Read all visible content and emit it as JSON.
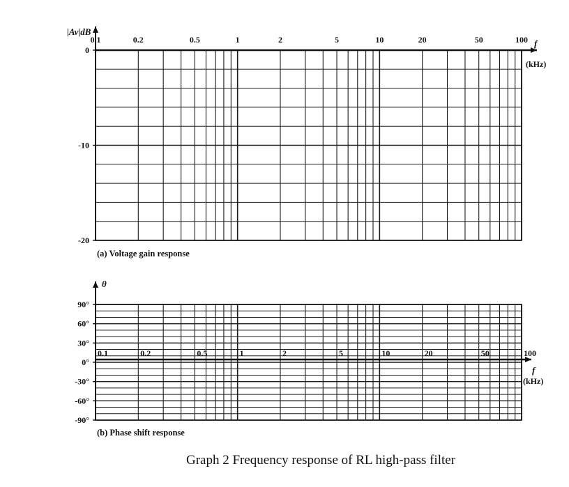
{
  "figure_title": "Graph 2 Frequency response of RL high-pass filter",
  "chart_data": [
    {
      "type": "line",
      "caption": "(a) Voltage gain response",
      "ylabel": "|Av|dB",
      "xlabel_symbol": "f",
      "xunit": "(kHz)",
      "xscale": "log",
      "xlim": [
        0.1,
        100
      ],
      "ylim": [
        -20,
        0
      ],
      "x_tick_labels": [
        "0.1",
        "0.2",
        "0.5",
        "1",
        "2",
        "5",
        "10",
        "20",
        "50",
        "100"
      ],
      "y_tick_labels": [
        "0",
        "-10",
        "-20"
      ],
      "y_ticks": [
        0,
        -10,
        -20
      ],
      "grid": true,
      "series": []
    },
    {
      "type": "line",
      "caption": "(b) Phase shift response",
      "ylabel": "θ",
      "xlabel_symbol": "f",
      "xunit": "(kHz)",
      "xscale": "log",
      "xlim": [
        0.1,
        100
      ],
      "ylim": [
        -90,
        90
      ],
      "x_tick_labels": [
        "0.1",
        "0.2",
        "0.5",
        "1",
        "2",
        "5",
        "10",
        "20",
        "50",
        "100"
      ],
      "y_tick_labels": [
        "90°",
        "60°",
        "30°",
        "0°",
        "-30°",
        "-60°",
        "-90°"
      ],
      "y_ticks": [
        90,
        60,
        30,
        0,
        -30,
        -60,
        -90
      ],
      "grid": true,
      "series": []
    }
  ]
}
